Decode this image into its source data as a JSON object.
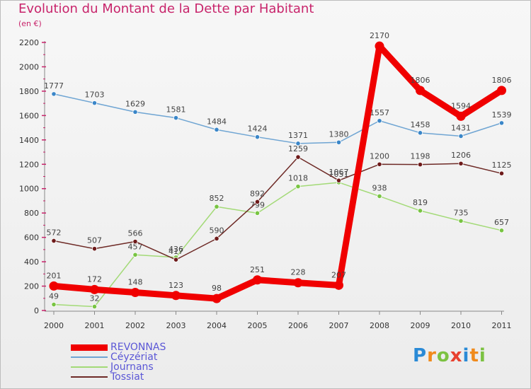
{
  "title": "Evolution du Montant de la Dette par Habitant",
  "subtitle": "(en €)",
  "logo": {
    "letters": [
      "P",
      "r",
      "o",
      "x",
      "i",
      "t",
      "i"
    ],
    "colors": [
      "#2a8ad6",
      "#f08a1c",
      "#7cc242",
      "#e8412f",
      "#2a8ad6",
      "#f08a1c",
      "#7cc242"
    ]
  },
  "chart_data": {
    "type": "line",
    "categories": [
      "2000",
      "2001",
      "2002",
      "2003",
      "2004",
      "2005",
      "2006",
      "2007",
      "2008",
      "2009",
      "2010",
      "2011"
    ],
    "ylim": [
      0,
      2200
    ],
    "yticks": [
      "0",
      "200",
      "400",
      "600",
      "800",
      "1000",
      "1200",
      "1400",
      "1600",
      "1800",
      "2000",
      "2200"
    ],
    "grid": false,
    "legend_position": "bottom-left",
    "series": [
      {
        "name": "Céyzériat",
        "color": "#6fa5d3",
        "marker": "#3a86c8",
        "values": [
          1777,
          1703,
          1629,
          1581,
          1484,
          1424,
          1371,
          1380,
          1557,
          1458,
          1431,
          1539
        ],
        "labels": [
          "1777",
          "1703",
          "1629",
          "1581",
          "1484",
          "1424",
          "1371",
          "1380",
          "1557",
          "1458",
          "1431",
          "1539"
        ]
      },
      {
        "name": "Journans",
        "color": "#a3da77",
        "marker": "#78c442",
        "values": [
          49,
          32,
          457,
          436,
          852,
          799,
          1018,
          1051,
          938,
          819,
          735,
          657
        ],
        "labels": [
          "49",
          "32",
          "457",
          "436",
          "852",
          "799",
          "1018",
          "1051",
          "938",
          "819",
          "735",
          "657"
        ]
      },
      {
        "name": "Tossiat",
        "color": "#6e2a26",
        "marker": "#6e1a1a",
        "values": [
          572,
          507,
          566,
          417,
          590,
          892,
          1259,
          1067,
          1200,
          1198,
          1206,
          1125
        ],
        "labels": [
          "572",
          "507",
          "566",
          "417",
          "590",
          "892",
          "1259",
          "1067",
          "1200",
          "1198",
          "1206",
          "1125"
        ]
      },
      {
        "name": "REVONNAS",
        "color": "#f00000",
        "marker": "#f00000",
        "values": [
          201,
          172,
          148,
          123,
          98,
          251,
          228,
          207,
          2170,
          1806,
          1594,
          1806
        ],
        "labels": [
          "201",
          "172",
          "148",
          "123",
          "98",
          "251",
          "228",
          "207",
          "2170",
          "1806",
          "1594",
          "1806"
        ]
      }
    ],
    "legend": [
      "REVONNAS",
      "Céyzériat",
      "Journans",
      "Tossiat"
    ]
  }
}
